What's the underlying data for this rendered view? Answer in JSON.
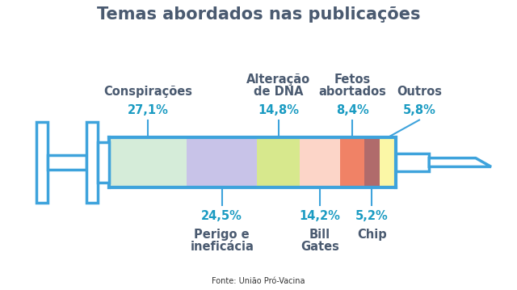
{
  "chart_data": {
    "type": "bar",
    "orientation": "horizontal",
    "stacked": true,
    "title": "Temas abordados nas publicações",
    "source": "Fonte: União Pró-Vacina",
    "categories": [
      "Conspirações",
      "Perigo e\nineficácia",
      "Alteração\nde DNA",
      "Bill\nGates",
      "Fetos\nabortados",
      "Chip",
      "Outros"
    ],
    "values": [
      27.1,
      24.5,
      14.8,
      14.2,
      8.4,
      5.2,
      5.8
    ],
    "value_labels": [
      "27,1%",
      "24,5%",
      "14,8%",
      "14,2%",
      "8,4%",
      "5,2%",
      "5,8%"
    ],
    "colors": [
      "#d5ecd9",
      "#c8c3e8",
      "#d7e88d",
      "#fcd5c8",
      "#f08266",
      "#b06b6b",
      "#fbf7a6"
    ],
    "xlim": [
      0,
      100
    ],
    "data_labels": true,
    "tick_labels": false
  }
}
